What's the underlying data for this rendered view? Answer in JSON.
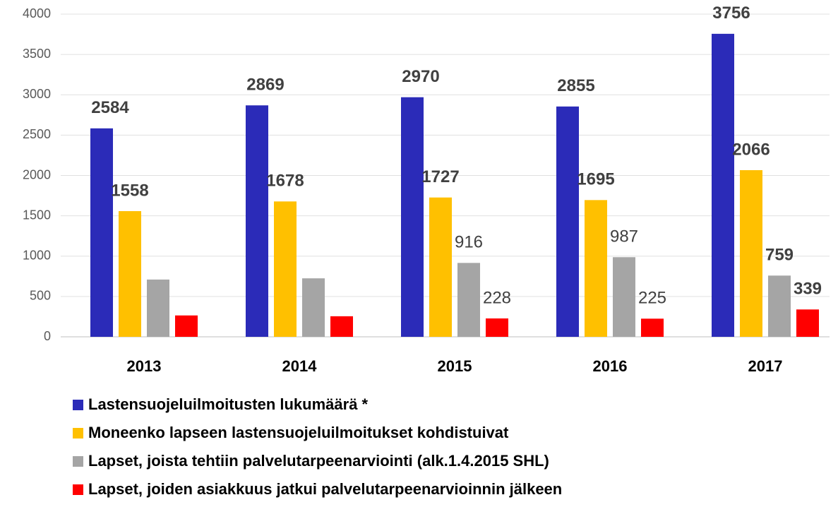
{
  "chart_data": {
    "type": "bar",
    "categories": [
      "2013",
      "2014",
      "2015",
      "2016",
      "2017"
    ],
    "series": [
      {
        "name": "Lastensuojeluilmoitusten lukumäärä *",
        "color": "#2b2bb8",
        "values": [
          2584,
          2869,
          2970,
          2855,
          3756
        ],
        "value_labels": [
          "2584",
          "2869",
          "2970",
          "2855",
          "3756"
        ]
      },
      {
        "name": "Moneenko lapseen lastensuojeluilmoitukset kohdistuivat",
        "color": "#ffc000",
        "values": [
          1558,
          1678,
          1727,
          1695,
          2066
        ],
        "value_labels": [
          "1558",
          "1678",
          "1727",
          "1695",
          "2066"
        ]
      },
      {
        "name": "Lapset, joista tehtiin palvelutarpeenarviointi (alk.1.4.2015 SHL)",
        "color": "#a5a5a5",
        "values": [
          710,
          725,
          916,
          987,
          759
        ],
        "value_labels": [
          null,
          null,
          "916",
          "987",
          "759"
        ]
      },
      {
        "name": "Lapset, joiden asiakkuus jatkui palvelutarpeenarvioinnin jälkeen",
        "color": "#ff0000",
        "values": [
          265,
          255,
          228,
          225,
          339
        ],
        "value_labels": [
          null,
          null,
          "228",
          "225",
          "339"
        ]
      }
    ],
    "ylim": [
      0,
      4000
    ],
    "yticks": [
      0,
      500,
      1000,
      1500,
      2000,
      2500,
      3000,
      3500,
      4000
    ],
    "grid": true
  }
}
